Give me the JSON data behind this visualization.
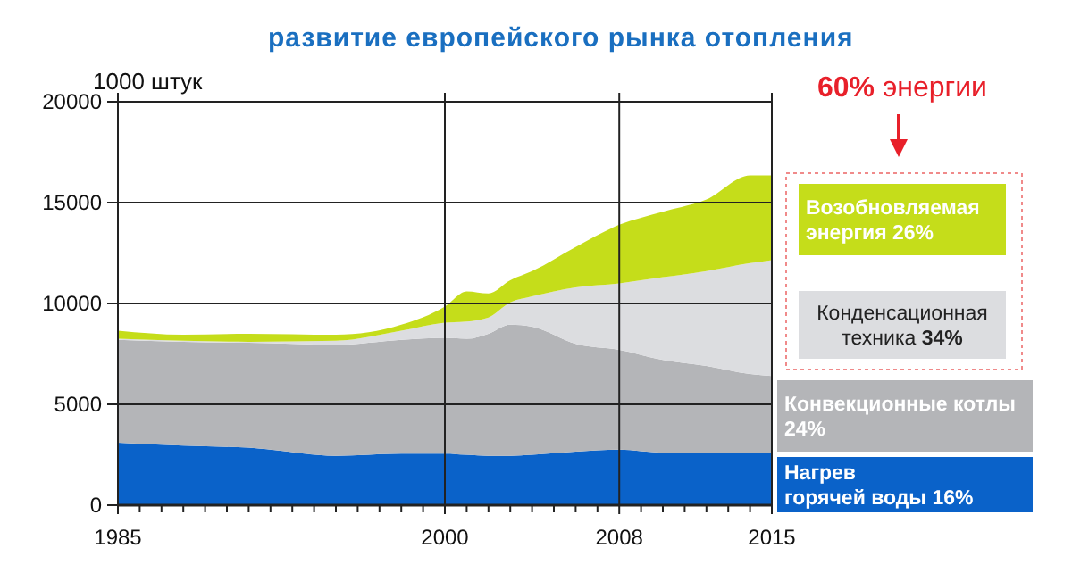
{
  "chart_data": {
    "type": "area",
    "stacked": true,
    "title": "развитие европейского рынка отопления",
    "ylabel": "1000 штук",
    "x": [
      1985,
      1988,
      1991,
      1995,
      1998,
      2000,
      2001,
      2002,
      2003,
      2004,
      2006,
      2008,
      2010,
      2012,
      2014,
      2015
    ],
    "series": [
      {
        "name": "Нагрев горячей воды 16%",
        "color": "#0a62c9",
        "values": [
          3100,
          2950,
          2850,
          2450,
          2550,
          2550,
          2500,
          2450,
          2450,
          2500,
          2650,
          2750,
          2600,
          2600,
          2600,
          2600
        ]
      },
      {
        "name": "Конвекционные котлы 24%",
        "color": "#b4b5b8",
        "values": [
          5100,
          5150,
          5200,
          5500,
          5650,
          5750,
          5750,
          6050,
          6500,
          6350,
          5350,
          4950,
          4600,
          4300,
          3900,
          3800
        ]
      },
      {
        "name": "Конденсационная техника 34%",
        "color": "#dcdde0",
        "values": [
          50,
          50,
          50,
          200,
          450,
          750,
          850,
          800,
          1100,
          1500,
          2800,
          3300,
          4100,
          4700,
          5500,
          5750
        ]
      },
      {
        "name": "Возобновляемая энергия 26%",
        "color": "#c5dd1a",
        "values": [
          400,
          300,
          400,
          300,
          300,
          800,
          1500,
          1200,
          1100,
          1250,
          2000,
          2900,
          3250,
          3550,
          4350,
          4200
        ]
      }
    ],
    "xlim": [
      1985,
      2015
    ],
    "xticks": [
      1985,
      {
        "value": 1986,
        "label": null
      },
      {
        "value": 1987,
        "label": null
      },
      {
        "value": 1988,
        "label": null
      },
      {
        "value": 1989,
        "label": null
      },
      {
        "value": 1990,
        "label": null
      },
      {
        "value": 1991,
        "label": null
      },
      {
        "value": 1992,
        "label": null
      },
      {
        "value": 1993,
        "label": null
      },
      {
        "value": 1994,
        "label": null
      },
      {
        "value": 1995,
        "label": null
      },
      {
        "value": 1996,
        "label": null
      },
      {
        "value": 1997,
        "label": null
      },
      {
        "value": 1998,
        "label": null
      },
      {
        "value": 1999,
        "label": null
      },
      2000,
      {
        "value": 2001,
        "label": null
      },
      {
        "value": 2002,
        "label": null
      },
      {
        "value": 2003,
        "label": null
      },
      {
        "value": 2004,
        "label": null
      },
      {
        "value": 2005,
        "label": null
      },
      {
        "value": 2006,
        "label": null
      },
      {
        "value": 2007,
        "label": null
      },
      2008,
      {
        "value": 2009,
        "label": null
      },
      {
        "value": 2010,
        "label": null
      },
      {
        "value": 2011,
        "label": null
      },
      {
        "value": 2012,
        "label": null
      },
      {
        "value": 2013,
        "label": null
      },
      {
        "value": 2014,
        "label": null
      },
      2015
    ],
    "ylim": [
      0,
      20000
    ],
    "yticks": [
      0,
      5000,
      10000,
      15000,
      20000
    ],
    "grid": true,
    "legend": "right",
    "annotations": [
      "60% энергии"
    ]
  }
}
